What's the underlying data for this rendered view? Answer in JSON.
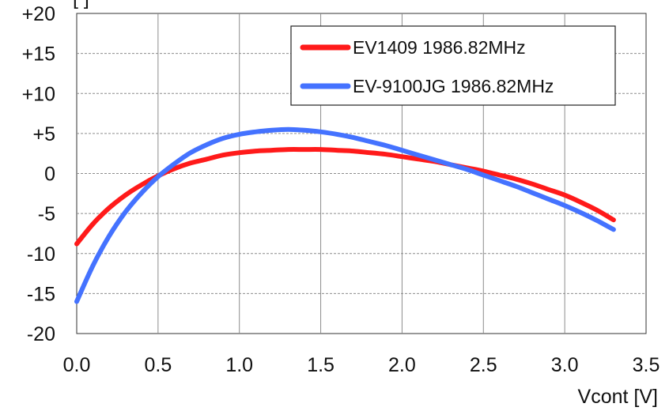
{
  "chart_data": {
    "type": "line",
    "title": "",
    "xlabel": "Vcont [V]",
    "ylabel": "[ ]",
    "xlim": [
      0,
      3.5
    ],
    "ylim": [
      -20,
      20
    ],
    "x_ticks": [
      "0.0",
      "0.5",
      "1.0",
      "1.5",
      "2.0",
      "2.5",
      "3.0",
      "3.5"
    ],
    "y_ticks": [
      "+20",
      "+15",
      "+10",
      "+5",
      "0",
      "-5",
      "-10",
      "-15",
      "-20"
    ],
    "grid": true,
    "legend_position": "top-right",
    "series": [
      {
        "name": "EV1409 1986.82MHz",
        "color": "#ff1a1a",
        "x": [
          0.0,
          0.1,
          0.2,
          0.3,
          0.4,
          0.5,
          0.6,
          0.7,
          0.8,
          0.9,
          1.0,
          1.1,
          1.2,
          1.3,
          1.4,
          1.5,
          1.6,
          1.7,
          1.8,
          1.9,
          2.0,
          2.1,
          2.2,
          2.3,
          2.4,
          2.5,
          2.6,
          2.7,
          2.8,
          2.9,
          3.0,
          3.1,
          3.2,
          3.3
        ],
        "y": [
          -8.8,
          -6.3,
          -4.3,
          -2.7,
          -1.4,
          -0.3,
          0.6,
          1.3,
          1.8,
          2.3,
          2.6,
          2.8,
          2.9,
          3.0,
          3.0,
          3.0,
          2.9,
          2.8,
          2.6,
          2.4,
          2.1,
          1.8,
          1.5,
          1.1,
          0.7,
          0.3,
          -0.2,
          -0.7,
          -1.3,
          -2.0,
          -2.7,
          -3.6,
          -4.6,
          -5.8
        ]
      },
      {
        "name": "EV-9100JG 1986.82MHz",
        "color": "#4472ff",
        "x": [
          0.0,
          0.1,
          0.2,
          0.3,
          0.4,
          0.5,
          0.6,
          0.7,
          0.8,
          0.9,
          1.0,
          1.1,
          1.2,
          1.3,
          1.4,
          1.5,
          1.6,
          1.7,
          1.8,
          1.9,
          2.0,
          2.1,
          2.2,
          2.3,
          2.4,
          2.5,
          2.6,
          2.7,
          2.8,
          2.9,
          3.0,
          3.1,
          3.2,
          3.3
        ],
        "y": [
          -16.0,
          -11.5,
          -7.8,
          -4.8,
          -2.4,
          -0.4,
          1.2,
          2.6,
          3.6,
          4.4,
          4.9,
          5.2,
          5.4,
          5.5,
          5.4,
          5.2,
          4.9,
          4.5,
          4.0,
          3.5,
          2.9,
          2.3,
          1.7,
          1.1,
          0.5,
          -0.2,
          -0.9,
          -1.6,
          -2.4,
          -3.2,
          -4.0,
          -4.9,
          -5.9,
          -7.0
        ]
      }
    ]
  }
}
